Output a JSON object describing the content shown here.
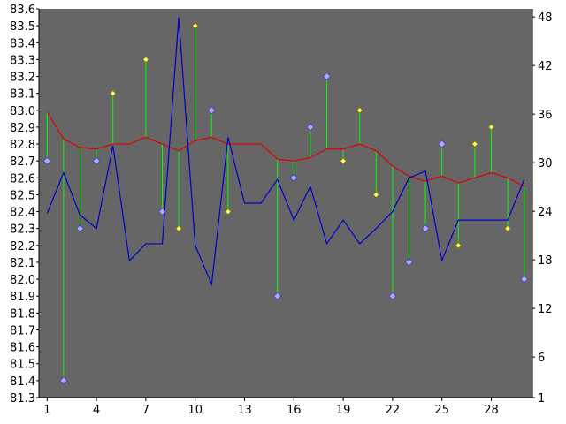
{
  "chart_data": {
    "type": "line",
    "title": "",
    "xlabel": "",
    "ylabel": "",
    "xlim": [
      0.5,
      30.5
    ],
    "ylim_left": [
      81.3,
      83.6
    ],
    "ylim_right": [
      1,
      49
    ],
    "x_ticks": [
      "1",
      "4",
      "7",
      "10",
      "13",
      "16",
      "19",
      "22",
      "25",
      "28"
    ],
    "y_ticks_left": [
      "81.3",
      "81.4",
      "81.5",
      "81.6",
      "81.7",
      "81.8",
      "81.9",
      "82.0",
      "82.1",
      "82.2",
      "82.3",
      "82.4",
      "82.5",
      "82.6",
      "82.7",
      "82.8",
      "82.9",
      "83.0",
      "83.1",
      "83.2",
      "83.3",
      "83.4",
      "83.5",
      "83.6"
    ],
    "y_ticks_right": [
      "1",
      "6",
      "12",
      "18",
      "24",
      "30",
      "36",
      "42",
      "48"
    ],
    "grid": false,
    "colors": {
      "background": "#666666",
      "blue_line": "#0000cc",
      "red_line": "#dd0000",
      "stem": "#00ff00",
      "marker_blue": "#aaaaff",
      "marker_yellow": "#ffff55"
    },
    "series": [
      {
        "axis": "left",
        "style": "stem-markers",
        "x": [
          1,
          2,
          3,
          4,
          5,
          6,
          7,
          8,
          9,
          10,
          11,
          12,
          13,
          14,
          15,
          16,
          17,
          18,
          19,
          20,
          21,
          22,
          23,
          24,
          25,
          26,
          27,
          28,
          29,
          30
        ],
        "values": [
          82.7,
          81.4,
          82.3,
          82.7,
          83.1,
          null,
          83.3,
          82.4,
          82.3,
          83.5,
          83.0,
          82.4,
          null,
          null,
          81.9,
          82.6,
          82.9,
          83.2,
          82.7,
          83.0,
          82.5,
          81.9,
          82.1,
          82.3,
          82.8,
          82.2,
          82.8,
          82.9,
          82.3,
          82.0
        ],
        "marker": [
          "diamond-blue",
          "diamond-blue",
          "diamond-blue",
          "diamond-blue",
          "diamond-yellow",
          null,
          "diamond-yellow",
          "diamond-blue",
          "diamond-yellow",
          "diamond-yellow",
          "diamond-blue",
          "diamond-yellow",
          null,
          null,
          "diamond-blue",
          "diamond-blue",
          "diamond-blue",
          "diamond-blue",
          "diamond-yellow",
          "diamond-yellow",
          "diamond-yellow",
          "diamond-blue",
          "diamond-blue",
          "diamond-blue",
          "diamond-blue",
          "diamond-yellow",
          "diamond-yellow",
          "diamond-yellow",
          "diamond-yellow",
          "diamond-blue"
        ]
      },
      {
        "axis": "left",
        "style": "line",
        "color": "#dd0000",
        "x": [
          1,
          2,
          3,
          4,
          5,
          6,
          7,
          8,
          9,
          10,
          11,
          12,
          13,
          14,
          15,
          16,
          17,
          18,
          19,
          20,
          21,
          22,
          23,
          24,
          25,
          26,
          27,
          28,
          29,
          30
        ],
        "values": [
          82.99,
          82.83,
          82.78,
          82.77,
          82.8,
          82.8,
          82.84,
          82.8,
          82.76,
          82.82,
          82.84,
          82.8,
          82.8,
          82.8,
          82.71,
          82.7,
          82.72,
          82.77,
          82.77,
          82.8,
          82.76,
          82.67,
          82.61,
          82.58,
          82.61,
          82.57,
          82.6,
          82.63,
          82.6,
          82.55
        ]
      },
      {
        "axis": "left",
        "style": "line",
        "color": "#0000cc",
        "x": [
          1,
          2,
          3,
          4,
          5,
          6,
          7,
          8,
          9,
          10,
          11,
          12,
          13,
          14,
          15,
          16,
          17,
          18,
          19,
          20,
          21,
          22,
          23,
          24,
          25,
          26,
          27,
          28,
          29,
          30
        ],
        "values": [
          82.39,
          82.63,
          82.38,
          82.3,
          82.79,
          82.11,
          82.21,
          82.21,
          83.55,
          82.2,
          81.97,
          82.84,
          82.45,
          82.45,
          82.59,
          82.35,
          82.55,
          82.21,
          82.35,
          82.21,
          82.3,
          82.4,
          82.6,
          82.64,
          82.11,
          82.35,
          82.35,
          82.35,
          82.35,
          82.59
        ]
      }
    ]
  }
}
